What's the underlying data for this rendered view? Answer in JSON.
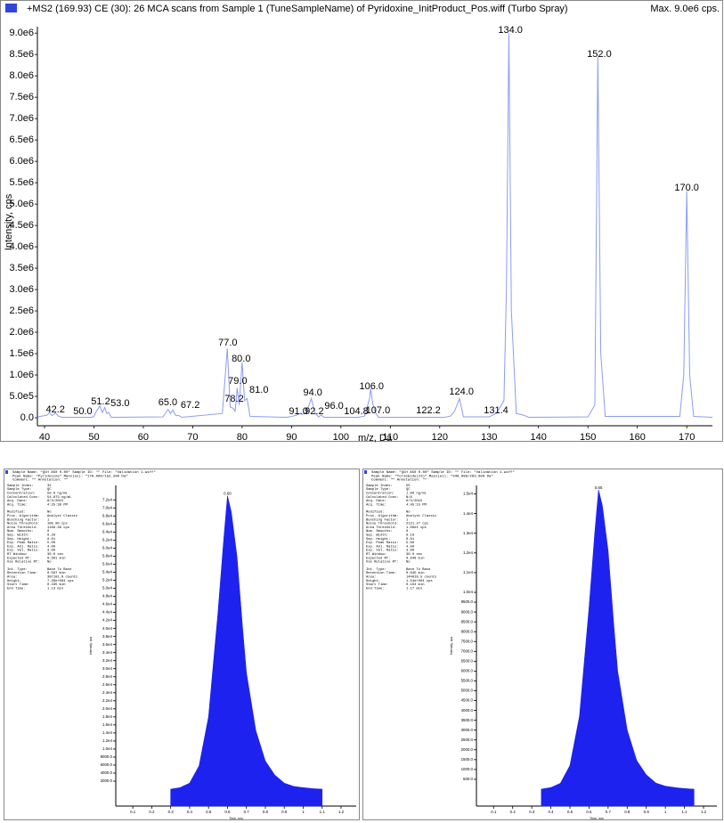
{
  "chart_data": [
    {
      "type": "line",
      "title": "+MS2 (169.93) CE (30): 26 MCA scans from Sample 1 (TuneSampleName) of Pyridoxine_InitProduct_Pos.wiff (Turbo Spray)",
      "subtitle": "Max. 9.0e6 cps.",
      "x_label": "m/z, Da",
      "y_label": "Intensity, cps",
      "color": "#8c9cf2",
      "x": [
        38.6,
        40.5,
        41,
        41.5,
        42.2,
        42.8,
        43.5,
        49.5,
        50,
        50.5,
        51.2,
        51.7,
        52.2,
        52.6,
        53,
        53.5,
        64,
        65,
        65.5,
        66,
        66.5,
        67.2,
        67.8,
        76,
        77,
        77.6,
        78.2,
        78.6,
        79,
        79.4,
        80,
        80.5,
        81,
        81.6,
        89,
        90,
        91,
        91.8,
        92.2,
        93,
        94,
        94.8,
        95.5,
        96,
        96.6,
        103.5,
        104.8,
        105.3,
        105.8,
        106,
        106.5,
        107,
        107.6,
        121,
        122.2,
        123,
        124,
        124.8,
        130,
        131.4,
        132,
        133,
        133.5,
        134,
        134.5,
        135.5,
        137,
        138,
        150,
        151.4,
        152,
        152.6,
        153.5,
        168.6,
        169.4,
        170,
        170.6,
        171.4,
        175.2
      ],
      "values": [
        20000,
        60000,
        120000,
        50000,
        110000,
        40000,
        10000,
        10000,
        30000,
        150000,
        280000,
        120000,
        240000,
        100000,
        120000,
        10000,
        20000,
        200000,
        100000,
        180000,
        60000,
        50000,
        10000,
        100000,
        1620000,
        250000,
        220000,
        150000,
        700000,
        300000,
        1300000,
        400000,
        450000,
        30000,
        10000,
        30000,
        60000,
        100000,
        80000,
        120000,
        450000,
        100000,
        20000,
        60000,
        10000,
        10000,
        40000,
        250000,
        450000,
        680000,
        300000,
        120000,
        10000,
        10000,
        40000,
        150000,
        450000,
        20000,
        20000,
        100000,
        200000,
        400000,
        3000000,
        9000000,
        2500000,
        100000,
        60000,
        10000,
        20000,
        300000,
        8450000,
        1500000,
        30000,
        30000,
        1000000,
        5300000,
        1000000,
        30000,
        10000
      ],
      "xlim": [
        38.56,
        175.2
      ],
      "ylim": [
        0,
        9150000
      ],
      "xticks": [
        40,
        50,
        60,
        70,
        80,
        90,
        100,
        110,
        120,
        130,
        140,
        150,
        160,
        170
      ],
      "yticks": [
        {
          "value": 0,
          "label": "0.0"
        },
        {
          "value": 500000,
          "label": "5.0e5"
        },
        {
          "value": 1000000,
          "label": "1.0e6"
        },
        {
          "value": 1500000,
          "label": "1.5e6"
        },
        {
          "value": 2000000,
          "label": "2.0e6"
        },
        {
          "value": 2500000,
          "label": "2.5e6"
        },
        {
          "value": 3000000,
          "label": "3.0e6"
        },
        {
          "value": 3500000,
          "label": "3.5e6"
        },
        {
          "value": 4000000,
          "label": "4.0e6"
        },
        {
          "value": 4500000,
          "label": "4.5e6"
        },
        {
          "value": 5000000,
          "label": "5.0e6"
        },
        {
          "value": 5500000,
          "label": "5.5e6"
        },
        {
          "value": 6000000,
          "label": "6.0e6"
        },
        {
          "value": 6500000,
          "label": "6.5e6"
        },
        {
          "value": 7000000,
          "label": "7.0e6"
        },
        {
          "value": 7500000,
          "label": "7.5e6"
        },
        {
          "value": 8000000,
          "label": "8.0e6"
        },
        {
          "value": 8500000,
          "label": "8.5e6"
        },
        {
          "value": 9000000,
          "label": "9.0e6"
        }
      ],
      "annotations": [
        {
          "text": "42.2",
          "x": 42.2,
          "y": 125000
        },
        {
          "text": "50.0",
          "x": 47.75,
          "y": 80000
        },
        {
          "text": "51.2",
          "x": 51.36,
          "y": 310000
        },
        {
          "text": "53.0",
          "x": 55.3,
          "y": 270000
        },
        {
          "text": "65.0",
          "x": 64.96,
          "y": 290000
        },
        {
          "text": "67.2",
          "x": 69.5,
          "y": 230000
        },
        {
          "text": "77.0",
          "x": 77.1,
          "y": 1690000
        },
        {
          "text": "78.2",
          "x": 78.4,
          "y": 375000
        },
        {
          "text": "79.0",
          "x": 79.1,
          "y": 790000
        },
        {
          "text": "80.0",
          "x": 79.8,
          "y": 1310000
        },
        {
          "text": "81.0",
          "x": 83.4,
          "y": 580000
        },
        {
          "text": "91.0",
          "x": 91.4,
          "y": 80000
        },
        {
          "text": "92.2",
          "x": 94.6,
          "y": 80000
        },
        {
          "text": "94.0",
          "x": 94.3,
          "y": 520000
        },
        {
          "text": "96.0",
          "x": 98.6,
          "y": 210000
        },
        {
          "text": "104.8",
          "x": 103.1,
          "y": 80000
        },
        {
          "text": "106.0",
          "x": 106.2,
          "y": 670000
        },
        {
          "text": "107.0",
          "x": 107.5,
          "y": 100000
        },
        {
          "text": "122.2",
          "x": 117.7,
          "y": 100000
        },
        {
          "text": "124.0",
          "x": 124.4,
          "y": 540000
        },
        {
          "text": "131.4",
          "x": 131.4,
          "y": 100000
        },
        {
          "text": "134.0",
          "x": 134.3,
          "y": 9000000
        },
        {
          "text": "152.0",
          "x": 152.3,
          "y": 8440000
        },
        {
          "text": "170.0",
          "x": 170.0,
          "y": 5310000
        }
      ]
    },
    {
      "type": "area",
      "header": [
        "Sample Name: \"QCH A50 0.00\"   Sample ID: \"\"   File: \"Validation 1.wiff\"",
        "Peak Name: \"Pyridoxine\"   Mass(es): \"170.099/152.200 Da\"",
        "Comment: \"\"   Annotation: \"\""
      ],
      "info": [
        [
          [
            "Sample Index:",
            "32"
          ],
          [
            "Sample Type:",
            "QC"
          ],
          [
            "Concentration:",
            "50.0 ng/mL"
          ],
          [
            "Calculated Conc:",
            "54.873 ng/mL"
          ],
          [
            "Acq. Date:",
            "6/3/2015"
          ],
          [
            "Acq. Time:",
            "4:25:38 PM"
          ]
        ],
        [
          [
            "Modified:",
            "No"
          ],
          [
            "Proc. Algorithm:",
            "Analyst Classic"
          ],
          [
            "Bunching Factor:",
            "1"
          ],
          [
            "Noise Threshold:",
            "100.00 cps"
          ],
          [
            "Area Threshold:",
            "1189.39 cps"
          ],
          [
            "Num. Smooths:",
            "0"
          ],
          [
            "Sep. Width:",
            "0.20"
          ],
          [
            "Sep. Height:",
            "0.01"
          ],
          [
            "Exp. Peak Ratio:",
            "5.00"
          ],
          [
            "Exp. Adj. Ratio:",
            "4.00"
          ],
          [
            "Exp. Val. Ratio:",
            "3.00"
          ],
          [
            "RT Window:",
            "30.0 sec"
          ],
          [
            "Expected RT:",
            "0.601 min"
          ],
          [
            "Use Relative RT:",
            "No"
          ]
        ],
        [
          [
            "Int. Type:",
            "Base To Base"
          ],
          [
            "Retention Time:",
            "0.597 min"
          ],
          [
            "Area:",
            "397101.9 counts"
          ],
          [
            "Height:",
            "7.30e+004 cps"
          ],
          [
            "Start Time:",
            "0.335 min"
          ],
          [
            "End Time:",
            "1.13 min"
          ]
        ]
      ],
      "x_label": "Time, min",
      "y_label": "Intensity, cps",
      "color": "#1e22ee",
      "x": [
        0.3,
        0.35,
        0.4,
        0.45,
        0.5,
        0.55,
        0.58,
        0.6,
        0.62,
        0.65,
        0.68,
        0.7,
        0.75,
        0.8,
        0.85,
        0.9,
        0.95,
        1.0,
        1.05,
        1.1
      ],
      "values": [
        0,
        400,
        1500,
        5800,
        18000,
        44000,
        62000,
        73000,
        69000,
        58000,
        40000,
        29000,
        14500,
        7000,
        3500,
        1500,
        700,
        400,
        150,
        0
      ],
      "xlim": [
        0.01,
        1.28
      ],
      "ylim": [
        -4200,
        75600
      ],
      "xticks": [
        0.1,
        0.2,
        0.3,
        0.4,
        0.5,
        0.6,
        0.7,
        0.8,
        0.9,
        1.0,
        1.1,
        1.2
      ],
      "yticks": [
        {
          "value": 2000,
          "label": "2000.0"
        },
        {
          "value": 4000,
          "label": "4000.0"
        },
        {
          "value": 6000,
          "label": "6000.0"
        },
        {
          "value": 8000,
          "label": "8000.0"
        },
        {
          "value": 10000,
          "label": "1.0e4"
        },
        {
          "value": 12000,
          "label": "1.2e4"
        },
        {
          "value": 14000,
          "label": "1.4e4"
        },
        {
          "value": 16000,
          "label": "1.6e4"
        },
        {
          "value": 18000,
          "label": "1.8e4"
        },
        {
          "value": 20000,
          "label": "2.0e4"
        },
        {
          "value": 22000,
          "label": "2.2e4"
        },
        {
          "value": 24000,
          "label": "2.4e4"
        },
        {
          "value": 26000,
          "label": "2.6e4"
        },
        {
          "value": 28000,
          "label": "2.8e4"
        },
        {
          "value": 30000,
          "label": "3.0e4"
        },
        {
          "value": 32000,
          "label": "3.2e4"
        },
        {
          "value": 34000,
          "label": "3.4e4"
        },
        {
          "value": 36000,
          "label": "3.6e4"
        },
        {
          "value": 38000,
          "label": "3.8e4"
        },
        {
          "value": 40000,
          "label": "4.0e4"
        },
        {
          "value": 42000,
          "label": "4.2e4"
        },
        {
          "value": 44000,
          "label": "4.4e4"
        },
        {
          "value": 46000,
          "label": "4.6e4"
        },
        {
          "value": 48000,
          "label": "4.8e4"
        },
        {
          "value": 50000,
          "label": "5.0e4"
        },
        {
          "value": 52000,
          "label": "5.2e4"
        },
        {
          "value": 54000,
          "label": "5.4e4"
        },
        {
          "value": 56000,
          "label": "5.6e4"
        },
        {
          "value": 58000,
          "label": "5.8e4"
        },
        {
          "value": 60000,
          "label": "6.0e4"
        },
        {
          "value": 62000,
          "label": "6.2e4"
        },
        {
          "value": 64000,
          "label": "6.4e4"
        },
        {
          "value": 66000,
          "label": "6.6e4"
        },
        {
          "value": 68000,
          "label": "6.8e4"
        },
        {
          "value": 70000,
          "label": "7.0e4"
        },
        {
          "value": 72000,
          "label": "7.2e4"
        }
      ],
      "annotations": [
        {
          "text": "0.60",
          "x": 0.6,
          "y": 73000
        }
      ]
    },
    {
      "type": "area",
      "header": [
        "Sample Name: \"QCH A50 0.00\"   Sample ID: \"\"   File: \"Validation 1.wiff\"",
        "Peak Name: \"Torsemide(IS)\"   Mass(es): \"348.988/263.900 Da\"",
        "Comment: \"\"   Annotation: \"\""
      ],
      "info": [
        [
          [
            "Sample Index:",
            "55"
          ],
          [
            "Sample Type:",
            "QC"
          ],
          [
            "Concentration:",
            "1.00 ng/mL"
          ],
          [
            "Calculated Conc:",
            "N/A"
          ],
          [
            "Acq. Date:",
            "6/3/2015"
          ],
          [
            "Acq. Time:",
            "4:45:15 PM"
          ]
        ],
        [
          [
            "Modified:",
            "No"
          ],
          [
            "Proc. Algorithm:",
            "Analyst Classic"
          ],
          [
            "Bunching Factor:",
            "1"
          ],
          [
            "Noise Threshold:",
            "2121.27 cps"
          ],
          [
            "Area Threshold:",
            "1.06e4 cps"
          ],
          [
            "Num. Smooths:",
            "0"
          ],
          [
            "Sep. Width:",
            "0.10"
          ],
          [
            "Sep. Height:",
            "0.01"
          ],
          [
            "Exp. Peak Ratio:",
            "5.00"
          ],
          [
            "Exp. Adj. Ratio:",
            "4.00"
          ],
          [
            "Exp. Val. Ratio:",
            "3.00"
          ],
          [
            "RT Window:",
            "30.0 sec"
          ],
          [
            "Expected RT:",
            "0.649 min"
          ],
          [
            "Use Relative RT:",
            "No"
          ]
        ],
        [
          [
            "Int. Type:",
            "Base To Base"
          ],
          [
            "Retention Time:",
            "0.645 min"
          ],
          [
            "Area:",
            "144019.5 counts"
          ],
          [
            "Height:",
            "1.54e+004 cps"
          ],
          [
            "Start Time:",
            "0.164 min"
          ],
          [
            "End Time:",
            "1.17 min"
          ]
        ]
      ],
      "x_label": "Time, min",
      "y_label": "Intensity, cps",
      "color": "#1e22ee",
      "x": [
        0.35,
        0.4,
        0.45,
        0.5,
        0.55,
        0.6,
        0.63,
        0.65,
        0.67,
        0.7,
        0.73,
        0.75,
        0.8,
        0.85,
        0.9,
        0.95,
        1.0,
        1.05,
        1.1,
        1.15
      ],
      "values": [
        0,
        80,
        300,
        1200,
        3700,
        9200,
        13000,
        15200,
        14400,
        12100,
        8300,
        6000,
        3000,
        1450,
        730,
        310,
        150,
        80,
        30,
        0
      ],
      "xlim": [
        0.01,
        1.27
      ],
      "ylim": [
        -860,
        15430
      ],
      "xticks": [
        0.1,
        0.2,
        0.3,
        0.4,
        0.5,
        0.6,
        0.7,
        0.8,
        0.9,
        1.0,
        1.1,
        1.2
      ],
      "yticks": [
        {
          "value": 500,
          "label": "500.0"
        },
        {
          "value": 1000,
          "label": "1000.0"
        },
        {
          "value": 1500,
          "label": "1500.0"
        },
        {
          "value": 2000,
          "label": "2000.0"
        },
        {
          "value": 2500,
          "label": "2500.0"
        },
        {
          "value": 3000,
          "label": "3000.0"
        },
        {
          "value": 3500,
          "label": "3500.0"
        },
        {
          "value": 4000,
          "label": "4000.0"
        },
        {
          "value": 4500,
          "label": "4500.0"
        },
        {
          "value": 5000,
          "label": "5000.0"
        },
        {
          "value": 5500,
          "label": "5500.0"
        },
        {
          "value": 6000,
          "label": "6000.0"
        },
        {
          "value": 6500,
          "label": "6500.0"
        },
        {
          "value": 7000,
          "label": "7000.0"
        },
        {
          "value": 7500,
          "label": "7500.0"
        },
        {
          "value": 8000,
          "label": "8000.0"
        },
        {
          "value": 8500,
          "label": "8500.0"
        },
        {
          "value": 9000,
          "label": "9000.0"
        },
        {
          "value": 9500,
          "label": "9500.0"
        },
        {
          "value": 10000,
          "label": "1.0e4"
        },
        {
          "value": 11000,
          "label": "1.1e4"
        },
        {
          "value": 12000,
          "label": "1.2e4"
        },
        {
          "value": 13000,
          "label": "1.3e4"
        },
        {
          "value": 14000,
          "label": "1.4e4"
        },
        {
          "value": 15000,
          "label": "1.5e4"
        }
      ],
      "annotations": [
        {
          "text": "0.65",
          "x": 0.65,
          "y": 15200
        }
      ]
    }
  ]
}
